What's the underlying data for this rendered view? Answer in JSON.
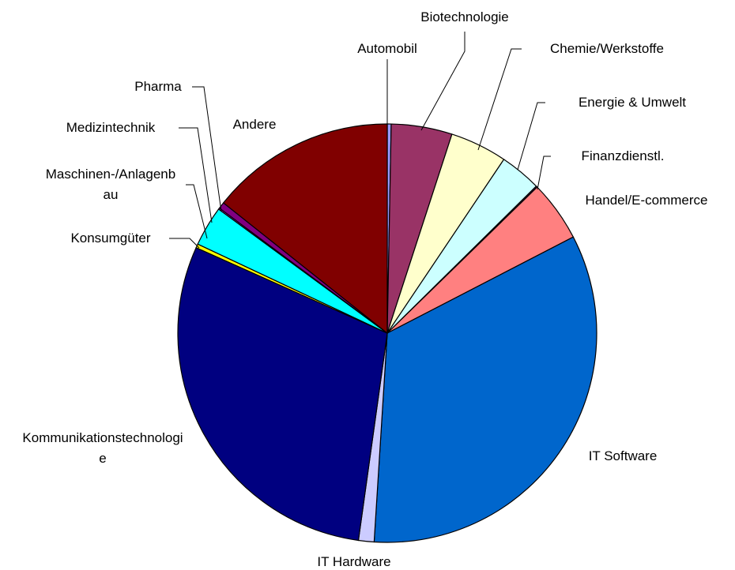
{
  "chart_data": {
    "type": "pie",
    "categories": [
      "Automobil",
      "Biotechnologie",
      "Chemie/Werkstoffe",
      "Energie & Umwelt",
      "Finanzdienstl.",
      "Handel/E-commerce",
      "IT Software",
      "IT Hardware",
      "Kommunikationstechnologie",
      "Konsumgüter",
      "Maschinen-/Anlagenbau",
      "Medizintechnik",
      "Pharma",
      "Andere"
    ],
    "values": [
      0.3,
      4.7,
      4.4,
      3.2,
      0.1,
      4.7,
      33.6,
      1.2,
      29.5,
      0.3,
      3.1,
      0.1,
      0.5,
      14.3
    ],
    "colors": [
      "#9999ff",
      "#993366",
      "#ffffcc",
      "#ccffff",
      "#660066",
      "#ff8080",
      "#0066cc",
      "#ccccff",
      "#000080",
      "#ffff00",
      "#00ffff",
      "#ff00ff",
      "#800080",
      "#800000"
    ]
  }
}
